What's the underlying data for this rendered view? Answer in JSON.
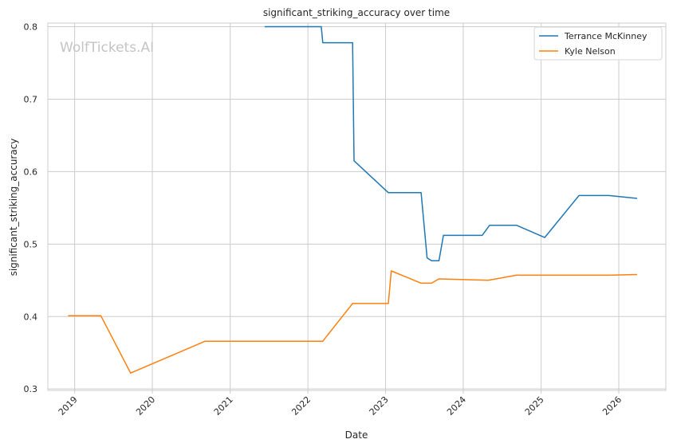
{
  "chart_data": {
    "type": "line",
    "title": "significant_striking_accuracy over time",
    "xlabel": "Date",
    "ylabel": "significant_striking_accuracy",
    "watermark": "WolfTickets.AI",
    "xlim": [
      "2018-08-28",
      "2026-08-10"
    ],
    "ylim": [
      0.298,
      0.805
    ],
    "x_ticks": [
      "2019-01-01",
      "2020-01-01",
      "2021-01-01",
      "2022-01-01",
      "2023-01-01",
      "2024-01-01",
      "2025-01-01",
      "2026-01-01"
    ],
    "x_tick_labels": [
      "2019",
      "2020",
      "2021",
      "2022",
      "2023",
      "2024",
      "2025",
      "2026"
    ],
    "y_ticks": [
      0.3,
      0.4,
      0.5,
      0.6,
      0.7,
      0.8
    ],
    "y_tick_labels": [
      "0.3",
      "0.4",
      "0.5",
      "0.6",
      "0.7",
      "0.8"
    ],
    "grid": true,
    "legend_position": "top-right",
    "series": [
      {
        "name": "Terrance McKinney",
        "color": "#1f77b4",
        "points": [
          [
            "2021-06-12",
            0.8
          ],
          [
            "2022-03-05",
            0.8
          ],
          [
            "2022-03-12",
            0.778
          ],
          [
            "2022-07-30",
            0.778
          ],
          [
            "2022-08-06",
            0.615
          ],
          [
            "2023-01-14",
            0.571
          ],
          [
            "2023-06-17",
            0.571
          ],
          [
            "2023-07-15",
            0.481
          ],
          [
            "2023-08-05",
            0.477
          ],
          [
            "2023-09-09",
            0.477
          ],
          [
            "2023-09-30",
            0.512
          ],
          [
            "2024-03-30",
            0.512
          ],
          [
            "2024-05-04",
            0.526
          ],
          [
            "2024-09-07",
            0.526
          ],
          [
            "2025-01-18",
            0.509
          ],
          [
            "2025-06-28",
            0.567
          ],
          [
            "2025-11-15",
            0.567
          ],
          [
            "2026-03-28",
            0.563
          ]
        ]
      },
      {
        "name": "Kyle Nelson",
        "color": "#ff7f0e",
        "points": [
          [
            "2018-12-01",
            0.401
          ],
          [
            "2019-05-04",
            0.401
          ],
          [
            "2019-09-21",
            0.322
          ],
          [
            "2020-09-05",
            0.366
          ],
          [
            "2022-03-12",
            0.366
          ],
          [
            "2022-07-30",
            0.418
          ],
          [
            "2023-01-14",
            0.418
          ],
          [
            "2023-01-28",
            0.463
          ],
          [
            "2023-06-17",
            0.446
          ],
          [
            "2023-08-05",
            0.446
          ],
          [
            "2023-09-09",
            0.452
          ],
          [
            "2024-04-27",
            0.45
          ],
          [
            "2024-09-07",
            0.457
          ],
          [
            "2025-11-15",
            0.457
          ],
          [
            "2026-03-28",
            0.458
          ]
        ]
      }
    ]
  }
}
